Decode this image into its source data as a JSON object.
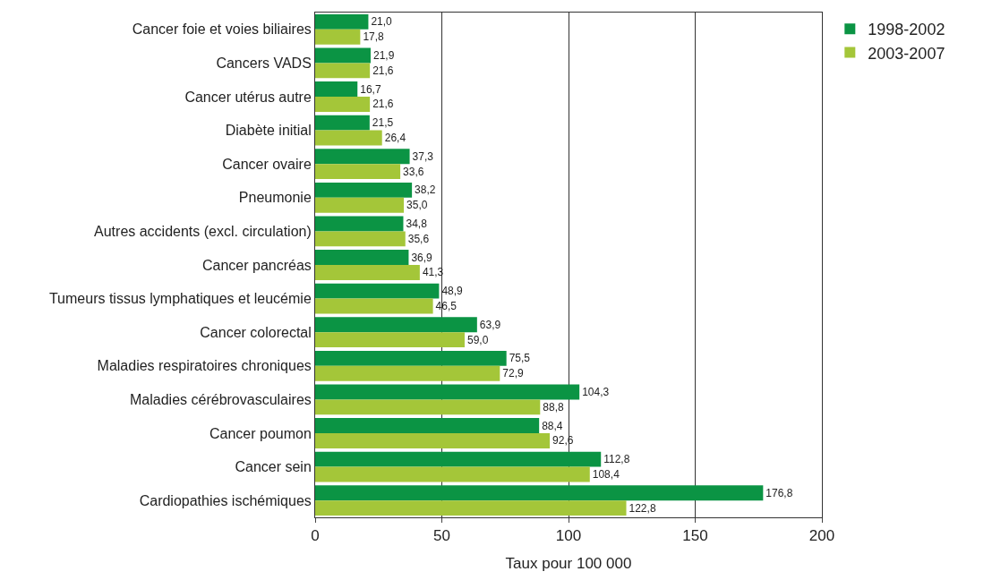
{
  "chart_data": {
    "type": "bar",
    "orientation": "horizontal",
    "xlabel": "Taux pour 100 000",
    "categories": [
      "Cancer foie et voies biliaires",
      "Cancers VADS",
      "Cancer utérus autre",
      "Diabète initial",
      "Cancer ovaire",
      "Pneumonie",
      "Autres accidents (excl. circulation)",
      "Cancer pancréas",
      "Tumeurs tissus lymphatiques et leucémie",
      "Cancer colorectal",
      "Maladies respiratoires chroniques",
      "Maladies cérébrovasculaires",
      "Cancer poumon",
      "Cancer sein",
      "Cardiopathies ischémiques"
    ],
    "series": [
      {
        "name": "1998-2002",
        "color": "#0b9444",
        "values": [
          21.0,
          21.9,
          16.7,
          21.5,
          37.3,
          38.2,
          34.8,
          36.9,
          48.9,
          63.9,
          75.5,
          104.3,
          88.4,
          112.8,
          176.8
        ],
        "value_labels": [
          "21,0",
          "21,9",
          "16,7",
          "21,5",
          "37,3",
          "38,2",
          "34,8",
          "36,9",
          "48,9",
          "63,9",
          "75,5",
          "104,3",
          "88,4",
          "112,8",
          "176,8"
        ]
      },
      {
        "name": "2003-2007",
        "color": "#a4c639",
        "values": [
          17.8,
          21.6,
          21.6,
          26.4,
          33.6,
          35.0,
          35.6,
          41.3,
          46.5,
          59.0,
          72.9,
          88.8,
          92.6,
          108.4,
          122.8
        ],
        "value_labels": [
          "17,8",
          "21,6",
          "21,6",
          "26,4",
          "33,6",
          "35,0",
          "35,6",
          "41,3",
          "46,5",
          "59,0",
          "72,9",
          "88,8",
          "92,6",
          "108,4",
          "122,8"
        ]
      }
    ],
    "xlim": [
      0,
      200
    ],
    "xticks": [
      0,
      50,
      100,
      150,
      200
    ],
    "grid": "x",
    "legend": "top right"
  }
}
